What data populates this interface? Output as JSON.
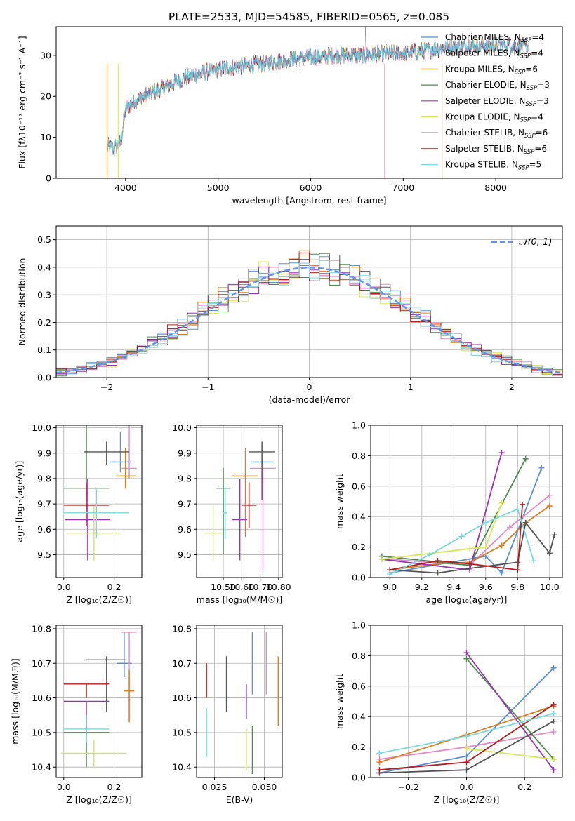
{
  "figure_title": "PLATE=2533, MJD=54585, FIBERID=0565, z=0.085",
  "colors": {
    "Chabrier MILES": "#5b8fd6",
    "Salpeter MILES": "#e38bc6",
    "Kroupa MILES": "#e07b20",
    "Chabrier ELODIE": "#4e8a4e",
    "Salpeter ELODIE": "#9b34b4",
    "Kroupa ELODIE": "#d4e857",
    "Chabrier STELIB": "#555555",
    "Salpeter STELIB": "#b51d1d",
    "Kroupa STELIB": "#7ad9dd",
    "gaussian": "#6495ed"
  },
  "chart_data": [
    {
      "type": "line",
      "xlabel": "wavelength [Angstrom, rest frame]",
      "ylabel": "Flux [fλ10⁻¹⁷ erg cm⁻² s⁻¹ A⁻¹]",
      "xlim": [
        3250,
        8720
      ],
      "ylim": [
        0,
        37
      ],
      "xticks": [
        4000,
        5000,
        6000,
        7000,
        8000
      ],
      "yticks": [
        0,
        10,
        20,
        30
      ],
      "legend": "top-right",
      "series_names": [
        "Chabrier MILES",
        "Salpeter MILES",
        "Kroupa MILES",
        "Chabrier ELODIE",
        "Salpeter ELODIE",
        "Kroupa ELODIE",
        "Chabrier STELIB",
        "Salpeter STELIB",
        "Kroupa STELIB"
      ],
      "legend_labels": [
        {
          "base": "Chabrier MILES, N",
          "n": "4"
        },
        {
          "base": "Salpeter MILES, N",
          "n": "4"
        },
        {
          "base": "Kroupa MILES, N",
          "n": "6"
        },
        {
          "base": "Chabrier ELODIE, N",
          "n": "3"
        },
        {
          "base": "Salpeter ELODIE, N",
          "n": "3"
        },
        {
          "base": "Kroupa ELODIE, N",
          "n": "4"
        },
        {
          "base": "Chabrier STELIB, N",
          "n": "6"
        },
        {
          "base": "Salpeter STELIB, N",
          "n": "6"
        },
        {
          "base": "Kroupa STELIB, N",
          "n": "5"
        }
      ],
      "legend_subscript": "SSP",
      "spectrum_anchors": {
        "x": [
          3800,
          3870,
          3950,
          4000,
          4100,
          4300,
          4500,
          4700,
          4900,
          5100,
          5300,
          5500,
          5800,
          6000,
          6300,
          6600,
          6800,
          7000,
          7200,
          7500,
          7800,
          8100,
          8350
        ],
        "y": [
          8,
          7,
          9,
          17,
          19,
          21,
          23,
          25,
          26,
          27,
          27.5,
          28,
          29,
          29.5,
          30,
          30,
          30.5,
          30.5,
          31,
          32,
          32.5,
          32.5,
          32
        ]
      },
      "grid": false
    },
    {
      "type": "histogram",
      "xlabel": "(data-model)/error",
      "ylabel": "Normed distribution",
      "xlim": [
        -2.5,
        2.5
      ],
      "ylim": [
        0,
        0.55
      ],
      "xticks": [
        -2,
        -1,
        0,
        1,
        2
      ],
      "yticks": [
        0.0,
        0.1,
        0.2,
        0.3,
        0.4,
        0.5
      ],
      "legend": "top-right",
      "legend_label": "𝒩(0, 1)",
      "bin_width": 0.1,
      "grid": true
    },
    {
      "type": "scatter",
      "xlabel": "Z [log₁₀(Z/Z☉)]",
      "ylabel": "age  [log₁₀(age/yr)]",
      "xlim": [
        -0.03,
        0.31
      ],
      "ylim": [
        9.41,
        10.01
      ],
      "xticks": [
        0.0,
        0.2
      ],
      "yticks": [
        9.5,
        9.6,
        9.7,
        9.8,
        9.9,
        10.0
      ],
      "grid": true,
      "points": [
        {
          "series": "Chabrier MILES",
          "x": 0.225,
          "xerr": 0.04,
          "y": 9.865,
          "yerr": [
            0.04,
            0.12
          ]
        },
        {
          "series": "Salpeter MILES",
          "x": 0.26,
          "xerr": 0.03,
          "y": 9.84,
          "yerr": [
            0.04,
            0.4
          ]
        },
        {
          "series": "Kroupa MILES",
          "x": 0.245,
          "xerr": 0.04,
          "y": 9.81,
          "yerr": [
            0.05,
            0.11
          ]
        },
        {
          "series": "Chabrier ELODIE",
          "x": 0.09,
          "xerr": 0.09,
          "y": 9.762,
          "yerr": [
            0.08,
            0.26
          ]
        },
        {
          "series": "Salpeter ELODIE",
          "x": 0.095,
          "xerr": 0.09,
          "y": 9.638,
          "yerr": [
            0.16,
            0.16
          ]
        },
        {
          "series": "Kroupa ELODIE",
          "x": 0.12,
          "xerr": 0.11,
          "y": 9.585,
          "yerr": [
            0.11,
            0.11
          ]
        },
        {
          "series": "Chabrier STELIB",
          "x": 0.17,
          "xerr": 0.09,
          "y": 9.905,
          "yerr": [
            0.05,
            0.04
          ]
        },
        {
          "series": "Salpeter STELIB",
          "x": 0.09,
          "xerr": 0.09,
          "y": 9.695,
          "yerr": [
            0.08,
            0.09
          ]
        },
        {
          "series": "Kroupa STELIB",
          "x": 0.13,
          "xerr": 0.13,
          "y": 9.665,
          "yerr": [
            0.1,
            0.1
          ]
        }
      ]
    },
    {
      "type": "scatter",
      "xlabel": "mass [log₁₀(M/M☉)]",
      "ylabel": "",
      "xlim": [
        10.355,
        10.82
      ],
      "ylim": [
        9.41,
        10.01
      ],
      "xticks": [
        10.5,
        10.6,
        10.7,
        10.8
      ],
      "yticks": [
        9.5,
        9.6,
        9.7,
        9.8,
        9.9,
        10.0
      ],
      "grid": true,
      "points": [
        {
          "series": "Chabrier MILES",
          "x": 10.71,
          "xerr": 0.06,
          "y": 9.865,
          "yerr": [
            0.07,
            0.07
          ]
        },
        {
          "series": "Salpeter MILES",
          "x": 10.715,
          "xerr": 0.07,
          "y": 9.84,
          "yerr": [
            0.4,
            0.0
          ]
        },
        {
          "series": "Kroupa MILES",
          "x": 10.62,
          "xerr": 0.07,
          "y": 9.81,
          "yerr": [
            0.24,
            0.11
          ]
        },
        {
          "series": "Chabrier ELODIE",
          "x": 10.5,
          "xerr": 0.04,
          "y": 9.762,
          "yerr": [
            0.26,
            0.08
          ]
        },
        {
          "series": "Salpeter ELODIE",
          "x": 10.59,
          "xerr": 0.04,
          "y": 9.638,
          "yerr": [
            0.16,
            0.16
          ]
        },
        {
          "series": "Kroupa ELODIE",
          "x": 10.445,
          "xerr": 0.05,
          "y": 9.585,
          "yerr": [
            0.11,
            0.11
          ]
        },
        {
          "series": "Chabrier STELIB",
          "x": 10.71,
          "xerr": 0.07,
          "y": 9.905,
          "yerr": [
            0.19,
            0.04
          ]
        },
        {
          "series": "Salpeter STELIB",
          "x": 10.64,
          "xerr": 0.04,
          "y": 9.695,
          "yerr": [
            0.09,
            0.09
          ]
        },
        {
          "series": "Kroupa STELIB",
          "x": 10.51,
          "xerr": 0.01,
          "y": 9.665,
          "yerr": [
            0.1,
            0.1
          ]
        }
      ]
    },
    {
      "type": "line",
      "xlabel": "age  [log₁₀(age/yr)]",
      "ylabel": "mass weight",
      "xlim": [
        8.88,
        10.08
      ],
      "ylim": [
        0,
        1.0
      ],
      "xticks": [
        9.0,
        9.2,
        9.4,
        9.6,
        9.8,
        10.0
      ],
      "yticks": [
        0.0,
        0.2,
        0.4,
        0.6,
        0.8,
        1.0
      ],
      "grid": true,
      "series": [
        {
          "series": "Chabrier MILES",
          "x": [
            9.0,
            9.6,
            9.7,
            9.95
          ],
          "y": [
            0.03,
            0.14,
            0.03,
            0.72
          ]
        },
        {
          "series": "Salpeter MILES",
          "x": [
            9.0,
            9.5,
            9.75,
            10.0
          ],
          "y": [
            0.12,
            0.08,
            0.33,
            0.54
          ]
        },
        {
          "series": "Kroupa MILES",
          "x": [
            9.0,
            9.3,
            9.5,
            9.7,
            9.85,
            10.0
          ],
          "y": [
            0.05,
            0.09,
            0.1,
            0.21,
            0.36,
            0.47
          ]
        },
        {
          "series": "Chabrier ELODIE",
          "x": [
            8.95,
            9.5,
            9.85
          ],
          "y": [
            0.14,
            0.08,
            0.78
          ]
        },
        {
          "series": "Salpeter ELODIE",
          "x": [
            8.95,
            9.5,
            9.7
          ],
          "y": [
            0.12,
            0.05,
            0.82
          ]
        },
        {
          "series": "Kroupa ELODIE",
          "x": [
            8.95,
            9.5,
            9.6,
            9.7
          ],
          "y": [
            0.12,
            0.19,
            0.2,
            0.49
          ]
        },
        {
          "series": "Chabrier STELIB",
          "x": [
            9.0,
            9.3,
            9.5,
            9.8,
            9.85,
            10.0,
            10.03
          ],
          "y": [
            0.05,
            0.03,
            0.06,
            0.1,
            0.36,
            0.16,
            0.28
          ]
        },
        {
          "series": "Salpeter STELIB",
          "x": [
            9.0,
            9.3,
            9.5,
            9.8,
            9.83
          ],
          "y": [
            0.05,
            0.11,
            0.09,
            0.05,
            0.48
          ]
        },
        {
          "series": "Kroupa STELIB",
          "x": [
            9.0,
            9.25,
            9.45,
            9.6,
            9.8,
            9.9
          ],
          "y": [
            0.02,
            0.15,
            0.27,
            0.36,
            0.45,
            0.11
          ]
        }
      ]
    },
    {
      "type": "scatter",
      "xlabel": "Z [log₁₀(Z/Z☉)]",
      "ylabel": "mass [log₁₀(M/M☉)]",
      "xlim": [
        -0.03,
        0.31
      ],
      "ylim": [
        10.37,
        10.81
      ],
      "xticks": [
        0.0,
        0.2
      ],
      "yticks": [
        10.4,
        10.5,
        10.6,
        10.7,
        10.8
      ],
      "grid": true,
      "points": [
        {
          "series": "Chabrier MILES",
          "x": 0.24,
          "xerr": 0.03,
          "y": 10.7,
          "yerr": [
            0.04,
            0.09
          ]
        },
        {
          "series": "Salpeter MILES",
          "x": 0.26,
          "xerr": 0.03,
          "y": 10.79,
          "yerr": [
            0.26,
            0.0
          ]
        },
        {
          "series": "Kroupa MILES",
          "x": 0.26,
          "xerr": 0.02,
          "y": 10.62,
          "yerr": [
            0.09,
            0.06
          ]
        },
        {
          "series": "Chabrier ELODIE",
          "x": 0.09,
          "xerr": 0.09,
          "y": 10.5,
          "yerr": [
            0.1,
            0.04
          ]
        },
        {
          "series": "Salpeter ELODIE",
          "x": 0.09,
          "xerr": 0.09,
          "y": 10.59,
          "yerr": [
            0.08,
            0.0
          ]
        },
        {
          "series": "Kroupa ELODIE",
          "x": 0.12,
          "xerr": 0.13,
          "y": 10.44,
          "yerr": [
            0.04,
            0.04
          ]
        },
        {
          "series": "Chabrier STELIB",
          "x": 0.17,
          "xerr": 0.08,
          "y": 10.71,
          "yerr": [
            0.15,
            0.01
          ]
        },
        {
          "series": "Salpeter STELIB",
          "x": 0.09,
          "xerr": 0.09,
          "y": 10.64,
          "yerr": [
            0.04,
            0.0
          ]
        },
        {
          "series": "Kroupa STELIB",
          "x": 0.09,
          "xerr": 0.09,
          "y": 10.51,
          "yerr": [
            0.04,
            0.04
          ]
        }
      ]
    },
    {
      "type": "scatter",
      "xlabel": "E(B-V)",
      "ylabel": "",
      "xlim": [
        0.016,
        0.059
      ],
      "ylim": [
        10.37,
        10.81
      ],
      "xticks": [
        0.025,
        0.05
      ],
      "xticklabels": [
        "0.025",
        "0.050"
      ],
      "yticks": [
        10.4,
        10.5,
        10.6,
        10.7,
        10.8
      ],
      "grid": true,
      "points": [
        {
          "series": "Chabrier MILES",
          "x": 0.044,
          "y": 10.7,
          "yerr": [
            0.09,
            0.09
          ]
        },
        {
          "series": "Salpeter MILES",
          "x": 0.051,
          "y": 10.7,
          "yerr": [
            0.09,
            0.09
          ]
        },
        {
          "series": "Kroupa MILES",
          "x": 0.057,
          "y": 10.62,
          "yerr": [
            0.1,
            0.1
          ]
        },
        {
          "series": "Chabrier ELODIE",
          "x": 0.044,
          "y": 10.45,
          "yerr": [
            0.07,
            0.07
          ]
        },
        {
          "series": "Salpeter ELODIE",
          "x": 0.041,
          "y": 10.59,
          "yerr": [
            0.05,
            0.05
          ]
        },
        {
          "series": "Kroupa ELODIE",
          "x": 0.041,
          "y": 10.45,
          "yerr": [
            0.06,
            0.06
          ]
        },
        {
          "series": "Chabrier STELIB",
          "x": 0.031,
          "y": 10.64,
          "yerr": [
            0.08,
            0.08
          ]
        },
        {
          "series": "Salpeter STELIB",
          "x": 0.021,
          "y": 10.65,
          "yerr": [
            0.05,
            0.05
          ]
        },
        {
          "series": "Kroupa STELIB",
          "x": 0.021,
          "y": 10.5,
          "yerr": [
            0.07,
            0.07
          ]
        }
      ]
    },
    {
      "type": "line",
      "xlabel": "Z [log₁₀(Z/Z☉)]",
      "ylabel": "mass weight",
      "xlim": [
        -0.33,
        0.33
      ],
      "ylim": [
        0,
        1.0
      ],
      "xticks": [
        -0.2,
        0.0,
        0.2
      ],
      "yticks": [
        0.0,
        0.2,
        0.4,
        0.6,
        0.8,
        1.0
      ],
      "grid": true,
      "series": [
        {
          "series": "Chabrier MILES",
          "x": [
            -0.3,
            0.0,
            0.3
          ],
          "y": [
            0.03,
            0.14,
            0.72
          ]
        },
        {
          "series": "Salpeter MILES",
          "x": [
            -0.3,
            0.0,
            0.3
          ],
          "y": [
            0.12,
            0.2,
            0.3
          ]
        },
        {
          "series": "Kroupa MILES",
          "x": [
            -0.3,
            0.0,
            0.3
          ],
          "y": [
            0.1,
            0.28,
            0.47
          ]
        },
        {
          "series": "Chabrier ELODIE",
          "x": [
            0.0,
            0.3
          ],
          "y": [
            0.78,
            0.12
          ]
        },
        {
          "series": "Salpeter ELODIE",
          "x": [
            0.0,
            0.3
          ],
          "y": [
            0.82,
            0.05
          ]
        },
        {
          "series": "Kroupa ELODIE",
          "x": [
            0.0,
            0.3
          ],
          "y": [
            0.19,
            0.12
          ]
        },
        {
          "series": "Chabrier STELIB",
          "x": [
            -0.3,
            0.0,
            0.3
          ],
          "y": [
            0.03,
            0.05,
            0.37
          ]
        },
        {
          "series": "Salpeter STELIB",
          "x": [
            -0.3,
            0.0,
            0.3
          ],
          "y": [
            0.05,
            0.1,
            0.48
          ]
        },
        {
          "series": "Kroupa STELIB",
          "x": [
            -0.3,
            0.0,
            0.3
          ],
          "y": [
            0.16,
            0.27,
            0.42
          ]
        }
      ]
    }
  ]
}
